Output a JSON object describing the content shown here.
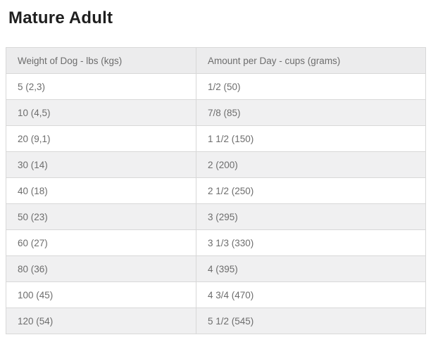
{
  "page": {
    "title": "Mature Adult"
  },
  "table": {
    "columns": [
      "Weight of Dog - lbs (kgs)",
      "Amount per Day - cups (grams)"
    ],
    "rows": [
      {
        "weight": "5 (2,3)",
        "amount": "1/2 (50)"
      },
      {
        "weight": "10 (4,5)",
        "amount": "7/8 (85)"
      },
      {
        "weight": "20 (9,1)",
        "amount": "1 1/2 (150)"
      },
      {
        "weight": "30 (14)",
        "amount": "2 (200)"
      },
      {
        "weight": "40 (18)",
        "amount": "2 1/2 (250)"
      },
      {
        "weight": "50 (23)",
        "amount": "3 (295)"
      },
      {
        "weight": "60 (27)",
        "amount": "3 1/3 (330)"
      },
      {
        "weight": "80 (36)",
        "amount": "4 (395)"
      },
      {
        "weight": "100 (45)",
        "amount": "4 3/4 (470)"
      },
      {
        "weight": "120 (54)",
        "amount": "5 1/2 (545)"
      }
    ]
  },
  "colors": {
    "title_text": "#1f1f1f",
    "cell_text": "#6d6d6d",
    "header_bg": "#ececed",
    "stripe_bg": "#f0f0f1",
    "border": "#d8d8d8"
  }
}
